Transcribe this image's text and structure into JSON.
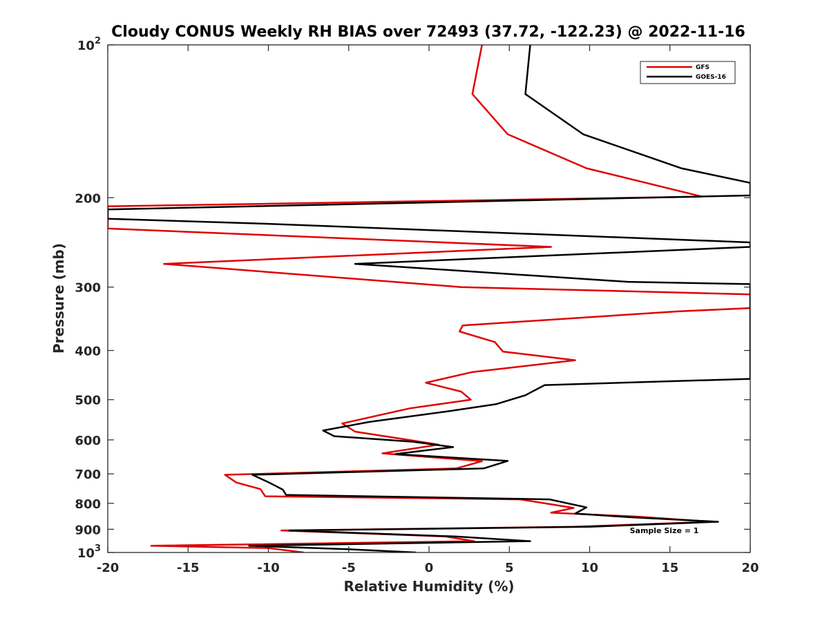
{
  "chart_data": {
    "type": "line",
    "title": "Cloudy CONUS Weekly RH BIAS over 72493 (37.72, -122.23) @ 2022-11-16",
    "xlabel": "Relative Humidity (%)",
    "ylabel": "Pressure (mb)",
    "xlim": [
      -20,
      20
    ],
    "ylim": [
      100,
      1000
    ],
    "y_scale": "log",
    "y_reversed": true,
    "grid": false,
    "x_ticks": [
      -20,
      -15,
      -10,
      -5,
      0,
      5,
      10,
      15,
      20
    ],
    "x_tick_labels": [
      "-20",
      "-15",
      "-10",
      "-5",
      "0",
      "5",
      "10",
      "15",
      "20"
    ],
    "y_ticks": [
      100,
      200,
      300,
      400,
      500,
      600,
      700,
      800,
      900,
      1000
    ],
    "y_tick_labels": [
      {
        "base": "10",
        "exp": "2"
      },
      {
        "base": "200",
        "exp": ""
      },
      {
        "base": "300",
        "exp": ""
      },
      {
        "base": "400",
        "exp": ""
      },
      {
        "base": "500",
        "exp": ""
      },
      {
        "base": "600",
        "exp": ""
      },
      {
        "base": "700",
        "exp": ""
      },
      {
        "base": "800",
        "exp": ""
      },
      {
        "base": "900",
        "exp": ""
      },
      {
        "base": "10",
        "exp": "3"
      }
    ],
    "legend": {
      "position": "top-right"
    },
    "series": [
      {
        "name": "GFS",
        "color": "#e00000",
        "points": [
          {
            "x": 3.3,
            "p": 100
          },
          {
            "x": 2.7,
            "p": 125
          },
          {
            "x": 4.9,
            "p": 150
          },
          {
            "x": 9.8,
            "p": 175
          },
          {
            "x": 17.0,
            "p": 199
          },
          {
            "x": -20.0,
            "p": 208
          },
          {
            "x": -20.0,
            "p": 230
          },
          {
            "x": 7.6,
            "p": 250
          },
          {
            "x": -16.5,
            "p": 270
          },
          {
            "x": 2.0,
            "p": 300
          },
          {
            "x": 20.0,
            "p": 310
          },
          {
            "x": 20.0,
            "p": 330
          },
          {
            "x": 15.5,
            "p": 335
          },
          {
            "x": 2.1,
            "p": 357
          },
          {
            "x": 1.9,
            "p": 367
          },
          {
            "x": 4.1,
            "p": 385
          },
          {
            "x": 4.6,
            "p": 402
          },
          {
            "x": 9.1,
            "p": 418
          },
          {
            "x": 2.7,
            "p": 441
          },
          {
            "x": -0.2,
            "p": 463
          },
          {
            "x": 2.0,
            "p": 482
          },
          {
            "x": 2.6,
            "p": 500
          },
          {
            "x": -1.2,
            "p": 520
          },
          {
            "x": -5.4,
            "p": 557
          },
          {
            "x": -4.6,
            "p": 578
          },
          {
            "x": -1.3,
            "p": 600
          },
          {
            "x": 0.6,
            "p": 613
          },
          {
            "x": -2.9,
            "p": 638
          },
          {
            "x": 3.3,
            "p": 661
          },
          {
            "x": 1.7,
            "p": 683
          },
          {
            "x": -12.7,
            "p": 703
          },
          {
            "x": -12.0,
            "p": 728
          },
          {
            "x": -10.5,
            "p": 750
          },
          {
            "x": -10.2,
            "p": 775
          },
          {
            "x": 5.7,
            "p": 786
          },
          {
            "x": 9.0,
            "p": 817
          },
          {
            "x": 7.6,
            "p": 835
          },
          {
            "x": 13.0,
            "p": 850
          },
          {
            "x": 17.6,
            "p": 870
          },
          {
            "x": 9.0,
            "p": 890
          },
          {
            "x": -9.2,
            "p": 905
          },
          {
            "x": 1.0,
            "p": 930
          },
          {
            "x": 2.8,
            "p": 950
          },
          {
            "x": -17.3,
            "p": 970
          },
          {
            "x": -10.0,
            "p": 980
          },
          {
            "x": -7.8,
            "p": 1000
          }
        ]
      },
      {
        "name": "GOES-16",
        "color": "#000000",
        "points": [
          {
            "x": 6.3,
            "p": 100
          },
          {
            "x": 6.0,
            "p": 125
          },
          {
            "x": 9.6,
            "p": 150
          },
          {
            "x": 15.7,
            "p": 175
          },
          {
            "x": 20.0,
            "p": 187
          },
          {
            "x": 20.0,
            "p": 198
          },
          {
            "x": -20.0,
            "p": 211
          },
          {
            "x": -20.0,
            "p": 220
          },
          {
            "x": -10.3,
            "p": 225
          },
          {
            "x": 20.0,
            "p": 245
          },
          {
            "x": 20.0,
            "p": 250
          },
          {
            "x": -4.6,
            "p": 270
          },
          {
            "x": 12.4,
            "p": 293
          },
          {
            "x": 20.0,
            "p": 296
          },
          {
            "x": 20.0,
            "p": 455
          },
          {
            "x": 7.2,
            "p": 468
          },
          {
            "x": 6.0,
            "p": 490
          },
          {
            "x": 4.2,
            "p": 510
          },
          {
            "x": 1.2,
            "p": 527
          },
          {
            "x": -3.7,
            "p": 553
          },
          {
            "x": -6.6,
            "p": 575
          },
          {
            "x": -5.9,
            "p": 590
          },
          {
            "x": -1.0,
            "p": 605
          },
          {
            "x": 1.5,
            "p": 620
          },
          {
            "x": -2.1,
            "p": 640
          },
          {
            "x": 4.9,
            "p": 660
          },
          {
            "x": 3.4,
            "p": 683
          },
          {
            "x": -11.0,
            "p": 703
          },
          {
            "x": -10.0,
            "p": 727
          },
          {
            "x": -9.1,
            "p": 752
          },
          {
            "x": -8.9,
            "p": 770
          },
          {
            "x": 7.5,
            "p": 786
          },
          {
            "x": 9.8,
            "p": 815
          },
          {
            "x": 9.1,
            "p": 838
          },
          {
            "x": 12.5,
            "p": 852
          },
          {
            "x": 18.0,
            "p": 870
          },
          {
            "x": 10.0,
            "p": 890
          },
          {
            "x": -8.7,
            "p": 905
          },
          {
            "x": 1.6,
            "p": 930
          },
          {
            "x": 6.3,
            "p": 950
          },
          {
            "x": -11.2,
            "p": 970
          },
          {
            "x": -5.1,
            "p": 985
          },
          {
            "x": -0.8,
            "p": 1000
          }
        ]
      }
    ],
    "annotations": [
      {
        "text": "Sample Size = 1",
        "x": 12.5,
        "p": 905
      }
    ]
  }
}
